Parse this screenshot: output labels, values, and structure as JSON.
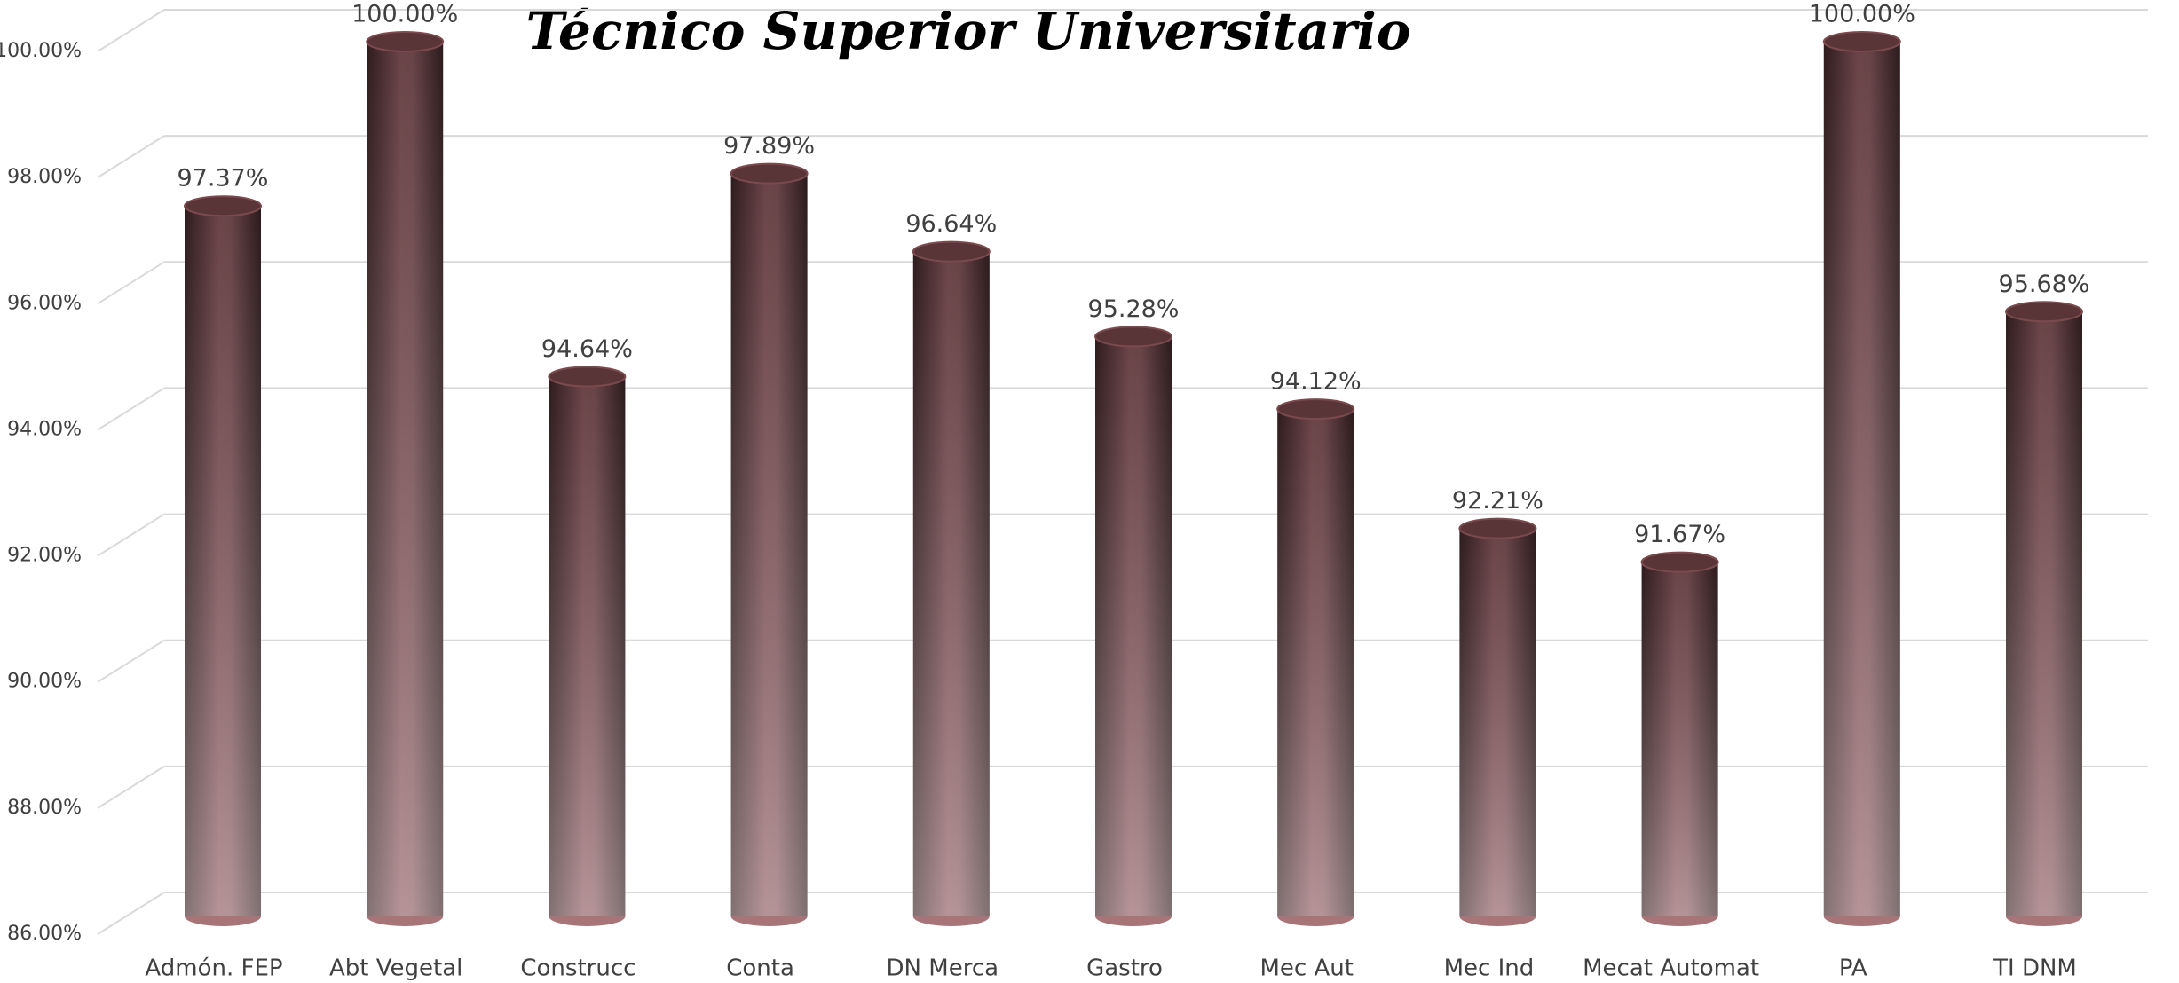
{
  "chart_data": {
    "type": "bar",
    "title": "Técnico Superior Universitario",
    "categories": [
      "Admón. FEP",
      "Abt Vegetal",
      "Construcc",
      "Conta",
      "DN Merca",
      "Gastro",
      "Mec Aut",
      "Mec Ind",
      "Mecat Automat",
      "PA",
      "TI DNM"
    ],
    "values": [
      97.37,
      100,
      94.64,
      97.89,
      96.64,
      95.28,
      94.12,
      92.21,
      91.67,
      100,
      95.68
    ],
    "value_labels": [
      "97.37%",
      "100.00%",
      "94.64%",
      "97.89%",
      "96.64%",
      "95.28%",
      "94.12%",
      "92.21%",
      "91.67%",
      "100.00%",
      "95.68%"
    ],
    "color": "#7a4a4e",
    "ylim": [
      86,
      100
    ],
    "yticks": [
      {
        "value": 86,
        "label": "86.00%"
      },
      {
        "value": 88,
        "label": "88.00%"
      },
      {
        "value": 90,
        "label": "90.00%"
      },
      {
        "value": 92,
        "label": "92.00%"
      },
      {
        "value": 94,
        "label": "94.00%"
      },
      {
        "value": 96,
        "label": "96.00%"
      },
      {
        "value": 98,
        "label": "98.00%"
      },
      {
        "value": 100,
        "label": "100.00%"
      }
    ],
    "grid": true
  }
}
